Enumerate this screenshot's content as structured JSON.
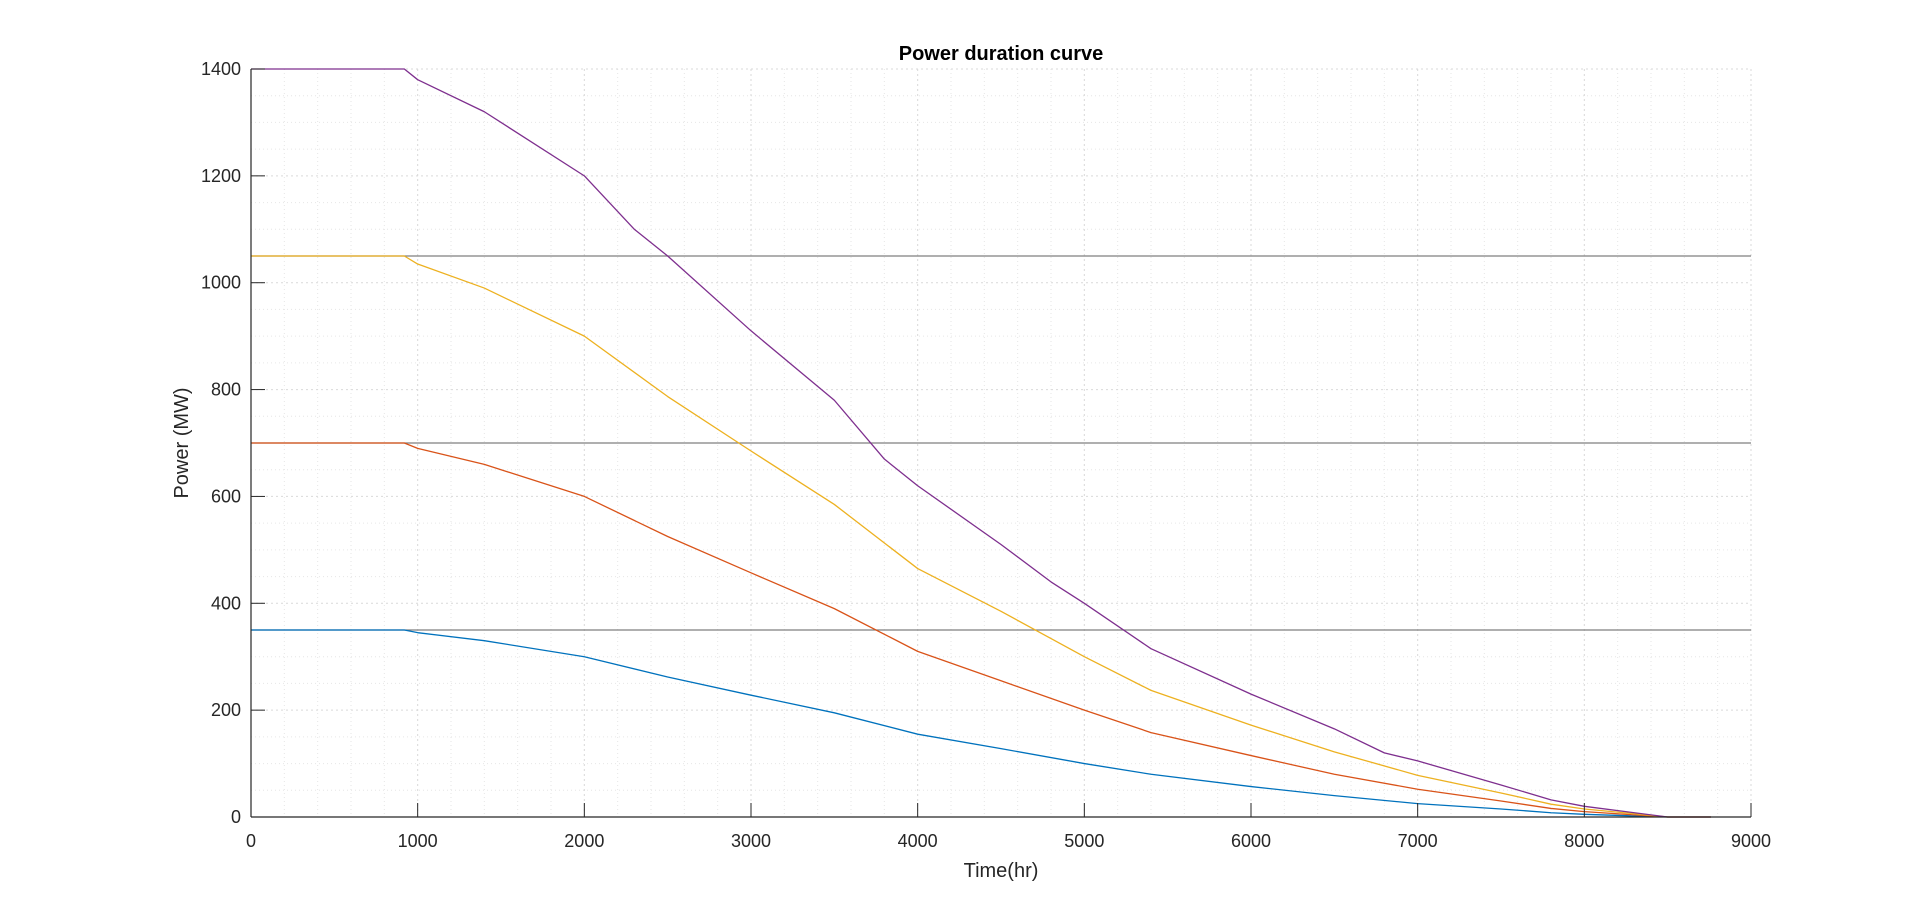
{
  "chart_data": {
    "type": "line",
    "title": "Power duration curve",
    "xlabel": "Time(hr)",
    "ylabel": "Power (MW)",
    "xlim": [
      0,
      9000
    ],
    "ylim": [
      0,
      1400
    ],
    "xticks": [
      0,
      1000,
      2000,
      3000,
      4000,
      5000,
      6000,
      7000,
      8000,
      9000
    ],
    "yticks": [
      0,
      200,
      400,
      600,
      800,
      1000,
      1200,
      1400
    ],
    "xtick_labels": [
      "0",
      "1000",
      "2000",
      "3000",
      "4000",
      "5000",
      "6000",
      "7000",
      "8000",
      "9000"
    ],
    "ytick_labels": [
      "0",
      "200",
      "400",
      "600",
      "800",
      "1000",
      "1200",
      "1400"
    ],
    "grid": true,
    "minor_grid": true,
    "legend": "none",
    "reference_lines": [
      350,
      700,
      1050
    ],
    "reference_line_color": "#7f7f7f",
    "series": [
      {
        "color": "#0072BD",
        "x": [
          0,
          920,
          1000,
          1400,
          2000,
          2500,
          3000,
          3500,
          4000,
          4500,
          5000,
          5400,
          6000,
          6500,
          7000,
          7500,
          7800,
          8000,
          8300,
          8500,
          8760
        ],
        "y": [
          350,
          350,
          345,
          330,
          300,
          262,
          228,
          195,
          155,
          128,
          100,
          80,
          57,
          40,
          25,
          15,
          8,
          5,
          2,
          0,
          0
        ]
      },
      {
        "color": "#D95319",
        "x": [
          0,
          920,
          1000,
          1400,
          2000,
          2500,
          3000,
          3500,
          4000,
          4500,
          5000,
          5400,
          6000,
          6500,
          7000,
          7500,
          7800,
          8000,
          8300,
          8500,
          8760
        ],
        "y": [
          700,
          700,
          690,
          660,
          600,
          525,
          457,
          390,
          310,
          255,
          200,
          158,
          115,
          80,
          52,
          30,
          16,
          10,
          4,
          0,
          0
        ]
      },
      {
        "color": "#EDB120",
        "x": [
          0,
          920,
          1000,
          1400,
          2000,
          2500,
          3000,
          3500,
          4000,
          4500,
          5000,
          5400,
          6000,
          6500,
          7000,
          7500,
          7800,
          8000,
          8300,
          8500,
          8760
        ],
        "y": [
          1050,
          1050,
          1035,
          990,
          900,
          787,
          685,
          585,
          465,
          385,
          300,
          237,
          172,
          122,
          78,
          45,
          24,
          15,
          6,
          0,
          0
        ]
      },
      {
        "color": "#7E2F8E",
        "x": [
          0,
          920,
          1000,
          1400,
          2000,
          2300,
          2500,
          3000,
          3500,
          3800,
          4000,
          4500,
          4800,
          5000,
          5400,
          6000,
          6500,
          6800,
          7000,
          7500,
          7800,
          8000,
          8300,
          8500,
          8760
        ],
        "y": [
          1400,
          1400,
          1380,
          1320,
          1200,
          1100,
          1050,
          910,
          780,
          670,
          620,
          510,
          440,
          400,
          315,
          230,
          165,
          120,
          105,
          60,
          32,
          20,
          8,
          0,
          0
        ]
      }
    ]
  }
}
